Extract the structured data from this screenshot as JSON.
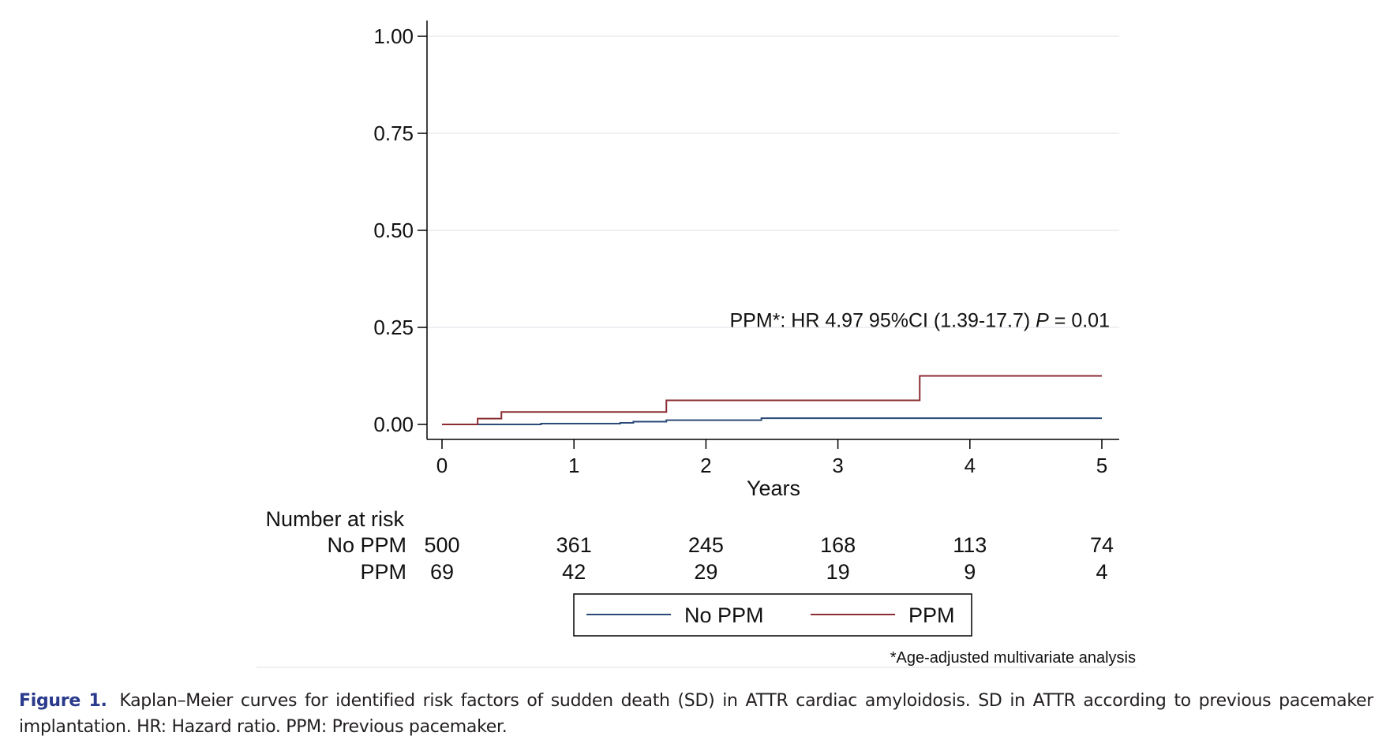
{
  "chart_data": {
    "type": "line",
    "subtype": "step",
    "xlabel": "Years",
    "ylabel": "",
    "xlim": [
      0,
      5
    ],
    "ylim": [
      0,
      1
    ],
    "xticks": [
      0,
      1,
      2,
      3,
      4,
      5
    ],
    "yticks": [
      "0.00",
      "0.25",
      "0.50",
      "0.75",
      "1.00"
    ],
    "grid": "horizontal",
    "series": [
      {
        "name": "No PPM",
        "color": "#2b4a78",
        "x": [
          0,
          0.75,
          1.35,
          1.45,
          1.7,
          2.42,
          5
        ],
        "y": [
          0,
          0.002,
          0.004,
          0.007,
          0.011,
          0.016,
          0.016
        ]
      },
      {
        "name": "PPM",
        "color": "#8b2c33",
        "x": [
          0,
          0.27,
          0.45,
          1.7,
          3.62,
          5
        ],
        "y": [
          0,
          0.015,
          0.032,
          0.062,
          0.125,
          0.125
        ]
      }
    ],
    "annotation": {
      "prefix": "PPM*: HR 4.97 95%CI (1.39-17.7) ",
      "p_label": "P",
      "suffix": " = 0.01",
      "x": 5,
      "y": 0.3
    },
    "risk_table": {
      "title": "Number at risk",
      "rows": [
        {
          "label": "No PPM",
          "values": [
            500,
            361,
            245,
            168,
            113,
            74
          ]
        },
        {
          "label": "PPM",
          "values": [
            69,
            42,
            29,
            19,
            9,
            4
          ]
        }
      ]
    },
    "legend": {
      "position": "bottom",
      "entries": [
        "No PPM",
        "PPM"
      ]
    },
    "footnote": "*Age-adjusted multivariate analysis"
  },
  "caption": {
    "label": "Figure 1.",
    "text": "Kaplan–Meier curves for identified risk factors of sudden death (SD) in ATTR cardiac amyloidosis. SD in ATTR according to previous pacemaker implantation. HR: Hazard ratio. PPM: Previous pacemaker."
  }
}
